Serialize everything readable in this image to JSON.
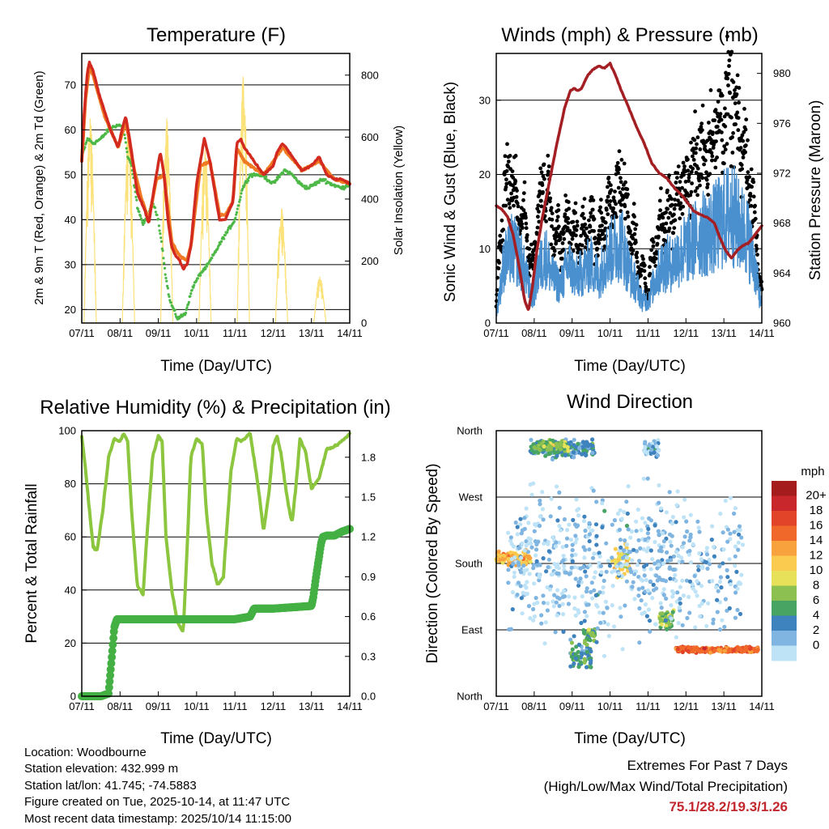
{
  "chart_data": [
    {
      "type": "line",
      "title": "Temperature (F)",
      "xlabel": "Time (Day/UTC)",
      "ylabel": "2m & 9m T (Red, Orange) & 2m Td (Green)",
      "y2label": "Solar Insolation (Yellow)",
      "x_ticks": [
        "07/11",
        "08/11",
        "09/11",
        "10/11",
        "11/11",
        "12/11",
        "13/11",
        "14/11"
      ],
      "ylim": [
        17,
        77
      ],
      "y_ticks": [
        20,
        30,
        40,
        50,
        60,
        70
      ],
      "y2lim": [
        0,
        870
      ],
      "y2_ticks": [
        0,
        200,
        400,
        600,
        800
      ],
      "series": [
        {
          "name": "2m T",
          "color": "#d32a20",
          "t": [
            0,
            0.05,
            0.1,
            0.15,
            0.2,
            0.3,
            0.45,
            0.6,
            0.75,
            0.85,
            0.95,
            1.05,
            1.15,
            1.25,
            1.35,
            1.45,
            1.55,
            1.65,
            1.75,
            1.85,
            1.95,
            2.05,
            2.15,
            2.25,
            2.35,
            2.45,
            2.55,
            2.65,
            2.75,
            2.85,
            3.0,
            3.1,
            3.2,
            3.35,
            3.5,
            3.6,
            3.75,
            3.95,
            4.05,
            4.15,
            4.25,
            4.5,
            4.75,
            5.0,
            5.1,
            5.25,
            5.5,
            5.75,
            6.0,
            6.2,
            6.4,
            6.6,
            6.8,
            7.0
          ],
          "v": [
            53,
            62,
            68,
            73,
            75,
            73,
            68,
            64,
            60,
            58,
            56,
            60,
            63,
            58,
            52,
            46,
            44,
            42,
            39,
            45,
            50,
            55,
            50,
            40,
            34,
            32,
            31,
            29,
            30,
            34,
            48,
            53,
            58,
            53,
            45,
            40,
            40,
            44,
            57,
            58,
            56,
            53,
            50,
            52,
            55,
            57,
            54,
            51,
            52,
            54,
            50,
            49,
            49,
            48
          ]
        },
        {
          "name": "9m T",
          "color": "#f07a22",
          "t": [
            0,
            0.1,
            0.2,
            0.3,
            0.6,
            0.95,
            1.15,
            1.35,
            1.55,
            1.75,
            1.95,
            2.15,
            2.35,
            2.55,
            2.75,
            2.85,
            3.1,
            3.35,
            3.6,
            3.75,
            3.95,
            4.05,
            4.25,
            4.75,
            5.25,
            5.75,
            6.2,
            6.6,
            7.0
          ],
          "v": [
            53,
            67,
            74,
            72,
            63,
            56,
            62,
            52,
            45,
            40,
            49,
            50,
            35,
            32,
            31,
            34,
            52,
            53,
            41,
            41,
            44,
            56,
            53,
            50,
            56,
            51,
            53,
            49,
            48
          ]
        },
        {
          "name": "2m Td",
          "color": "#4db847",
          "t": [
            0,
            0.15,
            0.3,
            0.5,
            0.7,
            0.9,
            1.0,
            1.1,
            1.2,
            1.3,
            1.45,
            1.6,
            1.75,
            1.85,
            2.0,
            2.1,
            2.2,
            2.3,
            2.5,
            2.7,
            2.9,
            3.1,
            3.3,
            3.5,
            3.7,
            3.85,
            4.0,
            4.2,
            4.4,
            4.7,
            5.0,
            5.3,
            5.5,
            5.7,
            5.9,
            6.1,
            6.3,
            6.5,
            6.8,
            7.0
          ],
          "v": [
            54,
            58,
            57,
            58,
            60,
            61,
            61,
            60,
            54,
            52,
            43,
            39,
            41,
            44,
            40,
            34,
            27,
            22,
            18,
            19,
            25,
            28,
            30,
            33,
            36,
            38,
            40,
            47,
            50,
            50,
            48,
            51,
            50,
            48,
            47,
            48,
            49,
            48,
            47,
            48
          ]
        },
        {
          "name": "Solar",
          "axis": "y2",
          "color": "#fbe27a",
          "peak_t": [
            0.22,
            1.22,
            2.22,
            3.22,
            4.22,
            5.22,
            6.22
          ],
          "peak_v": [
            660,
            630,
            660,
            560,
            795,
            370,
            150
          ]
        }
      ]
    },
    {
      "type": "scatter",
      "title": "Winds (mph) & Pressure (mb)",
      "xlabel": "Time (Day/UTC)",
      "ylabel": "Sonic Wind & Gust (Blue, Black)",
      "y2label": "Station Pressure (Maroon)",
      "x_ticks": [
        "07/11",
        "08/11",
        "09/11",
        "10/11",
        "11/11",
        "12/11",
        "13/11",
        "14/11"
      ],
      "ylim": [
        0,
        36.3
      ],
      "y_ticks": [
        0,
        10,
        20,
        30
      ],
      "y2lim": [
        960,
        981.6
      ],
      "y2_ticks": [
        960,
        964,
        968,
        972,
        976,
        980
      ],
      "series": [
        {
          "name": "Pressure",
          "axis": "y2",
          "color": "#a31f24",
          "t": [
            0,
            0.15,
            0.3,
            0.45,
            0.6,
            0.75,
            0.85,
            0.95,
            1.05,
            1.2,
            1.4,
            1.6,
            1.8,
            1.95,
            2.05,
            2.15,
            2.25,
            2.4,
            2.55,
            2.7,
            2.85,
            3.0,
            3.15,
            3.3,
            3.5,
            3.7,
            3.9,
            4.1,
            4.3,
            4.5,
            4.7,
            4.9,
            5.05,
            5.2,
            5.3,
            5.45,
            5.6,
            5.75,
            5.9,
            6.05,
            6.2,
            6.35,
            6.5,
            6.65,
            6.8,
            7.0
          ],
          "v": [
            969.4,
            969.1,
            968.5,
            967.0,
            964.6,
            961.8,
            961.0,
            962.8,
            965.4,
            968.2,
            971.3,
            974.4,
            977.2,
            978.6,
            978.8,
            978.6,
            978.8,
            979.8,
            980.3,
            980.6,
            980.4,
            980.8,
            979.8,
            978.6,
            977.2,
            975.7,
            974.4,
            972.8,
            972.0,
            971.6,
            970.8,
            970.2,
            969.6,
            969.0,
            968.8,
            968.6,
            968.4,
            968.0,
            966.8,
            965.8,
            965.2,
            965.8,
            966.2,
            966.4,
            967.0,
            967.8
          ]
        },
        {
          "name": "Sonic Wind",
          "color": "#4a90cf",
          "t": [
            0,
            0.2,
            0.4,
            0.6,
            0.8,
            0.95,
            1.1,
            1.3,
            1.5,
            1.7,
            1.9,
            2.1,
            2.3,
            2.5,
            2.7,
            2.9,
            3.1,
            3.3,
            3.5,
            3.7,
            3.85,
            4.0,
            4.2,
            4.4,
            4.6,
            4.8,
            5.0,
            5.2,
            5.4,
            5.6,
            5.8,
            6.0,
            6.2,
            6.4,
            6.6,
            6.8,
            7.0
          ],
          "v": [
            1,
            8,
            10,
            9,
            6,
            3,
            7,
            9,
            6,
            5,
            8,
            6,
            7,
            8,
            6,
            9,
            10,
            11,
            7,
            5,
            3,
            3,
            6,
            8,
            8,
            9,
            10,
            11,
            12,
            12,
            13,
            14,
            15,
            13,
            12,
            8,
            2
          ]
        },
        {
          "name": "Gust",
          "color": "#000000",
          "t": [
            0,
            0.2,
            0.4,
            0.6,
            0.8,
            0.95,
            1.1,
            1.3,
            1.5,
            1.7,
            1.9,
            2.1,
            2.3,
            2.5,
            2.7,
            2.9,
            3.1,
            3.3,
            3.5,
            3.7,
            3.85,
            4.0,
            4.2,
            4.4,
            4.6,
            4.8,
            5.0,
            5.2,
            5.4,
            5.6,
            5.8,
            6.0,
            6.2,
            6.4,
            6.6,
            6.8,
            7.0
          ],
          "v": [
            2,
            17,
            20,
            14,
            13,
            6,
            16,
            20,
            12,
            11,
            14,
            11,
            12,
            14,
            11,
            15,
            16,
            20,
            13,
            10,
            6,
            5,
            11,
            14,
            15,
            17,
            19,
            21,
            23,
            24,
            26,
            28,
            30,
            25,
            22,
            15,
            3
          ]
        }
      ]
    },
    {
      "type": "line",
      "title": "Relative Humidity (%) & Precipitation (in)",
      "xlabel": "Time (Day/UTC)",
      "ylabel": "Percent & Total Rainfall",
      "x_ticks": [
        "07/11",
        "08/11",
        "09/11",
        "10/11",
        "11/11",
        "12/11",
        "13/11",
        "14/11"
      ],
      "ylim": [
        0,
        100
      ],
      "y_ticks": [
        0,
        20,
        40,
        60,
        80,
        100
      ],
      "y2lim": [
        0,
        2
      ],
      "y2_ticks": [
        "0.0",
        "0.3",
        "0.6",
        "0.9",
        "1.2",
        "1.5",
        "1.8"
      ],
      "series": [
        {
          "name": "Relative Humidity",
          "color": "#8cc63f",
          "t": [
            0,
            0.08,
            0.2,
            0.3,
            0.4,
            0.55,
            0.7,
            0.85,
            1.0,
            1.1,
            1.2,
            1.3,
            1.45,
            1.6,
            1.7,
            1.85,
            2.0,
            2.1,
            2.2,
            2.35,
            2.5,
            2.65,
            2.75,
            2.85,
            3.0,
            3.15,
            3.25,
            3.4,
            3.55,
            3.7,
            3.8,
            3.9,
            4.05,
            4.15,
            4.25,
            4.4,
            4.6,
            4.75,
            4.9,
            5.0,
            5.1,
            5.2,
            5.35,
            5.45,
            5.5,
            5.6,
            5.7,
            5.85,
            6.0,
            6.2,
            6.4,
            6.6,
            6.8,
            7.0
          ],
          "v": [
            98,
            88,
            70,
            56,
            55,
            70,
            90,
            97,
            96,
            99,
            96,
            70,
            42,
            38,
            60,
            90,
            98,
            96,
            60,
            40,
            28,
            24,
            55,
            90,
            97,
            95,
            70,
            50,
            42,
            45,
            65,
            85,
            97,
            96,
            97,
            99,
            80,
            62,
            78,
            94,
            98,
            92,
            76,
            68,
            66,
            80,
            97,
            92,
            78,
            82,
            93,
            94,
            96,
            99
          ]
        },
        {
          "name": "Precipitation",
          "color": "#44b044",
          "t": [
            0,
            0.5,
            0.7,
            0.78,
            0.85,
            0.92,
            1.0,
            1.5,
            2.0,
            3.0,
            4.0,
            4.4,
            4.5,
            5.0,
            6.0,
            6.05,
            6.12,
            6.2,
            6.25,
            6.3,
            6.4,
            6.6,
            6.8,
            7.0
          ],
          "v": [
            0,
            0,
            0.02,
            0.28,
            0.52,
            0.58,
            0.58,
            0.58,
            0.58,
            0.58,
            0.58,
            0.6,
            0.66,
            0.66,
            0.68,
            0.75,
            0.9,
            1.05,
            1.15,
            1.2,
            1.21,
            1.21,
            1.24,
            1.26
          ]
        }
      ]
    },
    {
      "type": "scatter",
      "title": "Wind Direction",
      "xlabel": "Time (Day/UTC)",
      "ylabel": "Direction (Colored By Speed)",
      "x_ticks": [
        "07/11",
        "08/11",
        "09/11",
        "10/11",
        "11/11",
        "12/11",
        "13/11",
        "14/11"
      ],
      "y_ticks": [
        "North",
        "East",
        "South",
        "West",
        "North"
      ],
      "ylim": [
        0,
        360
      ],
      "colorbar": {
        "title": "mph",
        "labels": [
          "20+",
          "18",
          "16",
          "14",
          "12",
          "10",
          "8",
          "6",
          "4",
          "2",
          "0"
        ],
        "colors": [
          "#a51c1c",
          "#c8272c",
          "#e2442a",
          "#f0692a",
          "#f8a23d",
          "#fbcb4f",
          "#e7e15a",
          "#8cc152",
          "#47a463",
          "#3e82be",
          "#7fb5e0",
          "#bfe3f6"
        ]
      },
      "clusters": [
        {
          "t0": 0.0,
          "t1": 0.9,
          "dir": 187,
          "spread": 14,
          "speed": 12
        },
        {
          "t0": 0.9,
          "t1": 2.6,
          "dir": 336,
          "spread": 16,
          "speed": 4
        },
        {
          "t0": 1.0,
          "t1": 1.9,
          "dir": 338,
          "spread": 12,
          "speed": 7
        },
        {
          "t0": 1.95,
          "t1": 2.5,
          "dir": 55,
          "spread": 25,
          "speed": 5
        },
        {
          "t0": 2.3,
          "t1": 2.6,
          "dir": 82,
          "spread": 18,
          "speed": 6
        },
        {
          "t0": 3.05,
          "t1": 3.5,
          "dir": 185,
          "spread": 25,
          "speed": 10
        },
        {
          "t0": 3.9,
          "t1": 4.3,
          "dir": 335,
          "spread": 14,
          "speed": 2
        },
        {
          "t0": 4.3,
          "t1": 4.7,
          "dir": 105,
          "spread": 20,
          "speed": 7
        },
        {
          "t0": 4.7,
          "t1": 6.9,
          "dir": 63,
          "spread": 5,
          "speed": 15
        },
        {
          "t0": 0.3,
          "t1": 6.5,
          "dir": 180,
          "spread": 140,
          "speed": 1
        }
      ]
    }
  ],
  "info": {
    "location": "Location: Woodbourne",
    "elevation": "Station elevation: 432.999 m",
    "latlon": "Station lat/lon: 41.745; -74.5883",
    "created": "Figure created on Tue, 2025-10-14, at 11:47 UTC",
    "recent": "Most recent data timestamp: 2025/10/14 11:15:00"
  },
  "extremes": {
    "line1": "Extremes For Past 7 Days",
    "line2": "(High/Low/Max Wind/Total Precipitation)",
    "values": "75.1/28.2/19.3/1.26"
  }
}
